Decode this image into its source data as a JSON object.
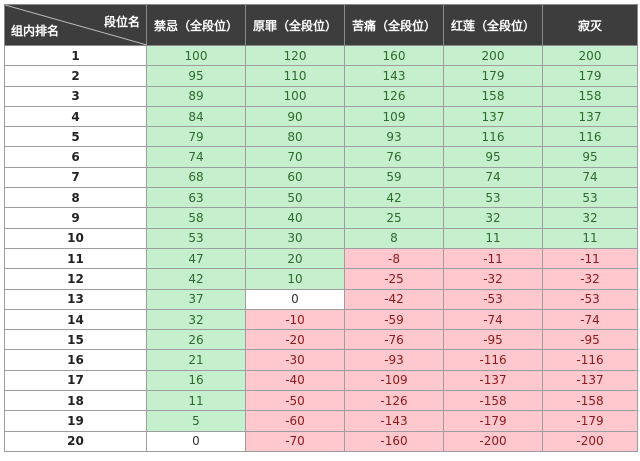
{
  "header": {
    "corner_row_label": "组内排名",
    "corner_col_label": "段位名",
    "columns": [
      "禁忌（全段位）",
      "原罪（全段位）",
      "苦痛（全段位）",
      "红莲（全段位）",
      "寂灭"
    ]
  },
  "colors": {
    "header_bg": "#3d3d3d",
    "positive_bg": "#c6efce",
    "negative_bg": "#ffc7ce",
    "zero_bg": "#ffffff"
  },
  "rows": [
    {
      "rank": "1",
      "values": [
        "100",
        "120",
        "160",
        "200",
        "200"
      ]
    },
    {
      "rank": "2",
      "values": [
        "95",
        "110",
        "143",
        "179",
        "179"
      ]
    },
    {
      "rank": "3",
      "values": [
        "89",
        "100",
        "126",
        "158",
        "158"
      ]
    },
    {
      "rank": "4",
      "values": [
        "84",
        "90",
        "109",
        "137",
        "137"
      ]
    },
    {
      "rank": "5",
      "values": [
        "79",
        "80",
        "93",
        "116",
        "116"
      ]
    },
    {
      "rank": "6",
      "values": [
        "74",
        "70",
        "76",
        "95",
        "95"
      ]
    },
    {
      "rank": "7",
      "values": [
        "68",
        "60",
        "59",
        "74",
        "74"
      ]
    },
    {
      "rank": "8",
      "values": [
        "63",
        "50",
        "42",
        "53",
        "53"
      ]
    },
    {
      "rank": "9",
      "values": [
        "58",
        "40",
        "25",
        "32",
        "32"
      ]
    },
    {
      "rank": "10",
      "values": [
        "53",
        "30",
        "8",
        "11",
        "11"
      ]
    },
    {
      "rank": "11",
      "values": [
        "47",
        "20",
        "-8",
        "-11",
        "-11"
      ]
    },
    {
      "rank": "12",
      "values": [
        "42",
        "10",
        "-25",
        "-32",
        "-32"
      ]
    },
    {
      "rank": "13",
      "values": [
        "37",
        "0",
        "-42",
        "-53",
        "-53"
      ]
    },
    {
      "rank": "14",
      "values": [
        "32",
        "-10",
        "-59",
        "-74",
        "-74"
      ]
    },
    {
      "rank": "15",
      "values": [
        "26",
        "-20",
        "-76",
        "-95",
        "-95"
      ]
    },
    {
      "rank": "16",
      "values": [
        "21",
        "-30",
        "-93",
        "-116",
        "-116"
      ]
    },
    {
      "rank": "17",
      "values": [
        "16",
        "-40",
        "-109",
        "-137",
        "-137"
      ]
    },
    {
      "rank": "18",
      "values": [
        "11",
        "-50",
        "-126",
        "-158",
        "-158"
      ]
    },
    {
      "rank": "19",
      "values": [
        "5",
        "-60",
        "-143",
        "-179",
        "-179"
      ]
    },
    {
      "rank": "20",
      "values": [
        "0",
        "-70",
        "-160",
        "-200",
        "-200"
      ]
    }
  ]
}
